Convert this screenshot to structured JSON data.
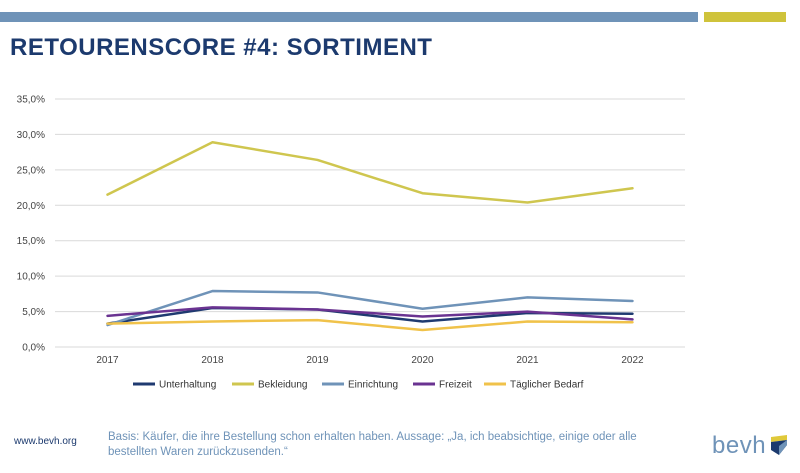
{
  "header": {
    "title": "RETOURENSCORE #4: SORTIMENT"
  },
  "colors": {
    "header_bar_blue": "#6f93b8",
    "header_bar_yellow": "#cfc33b",
    "title": "#1c3a6e"
  },
  "chart_data": {
    "type": "line",
    "x": [
      "2017",
      "2018",
      "2019",
      "2020",
      "2021",
      "2022"
    ],
    "ylim": [
      0,
      35
    ],
    "yticks": [
      "0,0%",
      "5,0%",
      "10,0%",
      "15,0%",
      "20,0%",
      "25,0%",
      "30,0%",
      "35,0%"
    ],
    "grid": true,
    "legend_position": "bottom",
    "series": [
      {
        "name": "Unterhaltung",
        "color": "#1f3a70",
        "values": [
          3.3,
          5.5,
          5.3,
          3.6,
          4.8,
          4.7
        ]
      },
      {
        "name": "Bekleidung",
        "color": "#cfc64f",
        "values": [
          21.5,
          28.9,
          26.4,
          21.7,
          20.4,
          22.4
        ]
      },
      {
        "name": "Einrichtung",
        "color": "#6f93b8",
        "values": [
          3.1,
          7.9,
          7.7,
          5.4,
          7.0,
          6.5
        ]
      },
      {
        "name": "Freizeit",
        "color": "#6a3391",
        "values": [
          4.4,
          5.6,
          5.3,
          4.3,
          5.0,
          3.9
        ]
      },
      {
        "name": "Täglicher Bedarf",
        "color": "#f0c24a",
        "values": [
          3.3,
          3.6,
          3.8,
          2.4,
          3.6,
          3.5
        ]
      }
    ]
  },
  "footer": {
    "url": "www.bevh.org",
    "note": "Basis: Käufer, die ihre Bestellung schon erhalten haben. Aussage: „Ja, ich beabsichtige, einige oder alle bestellten Waren zurückzusenden.“",
    "logo_text": "bevh"
  }
}
